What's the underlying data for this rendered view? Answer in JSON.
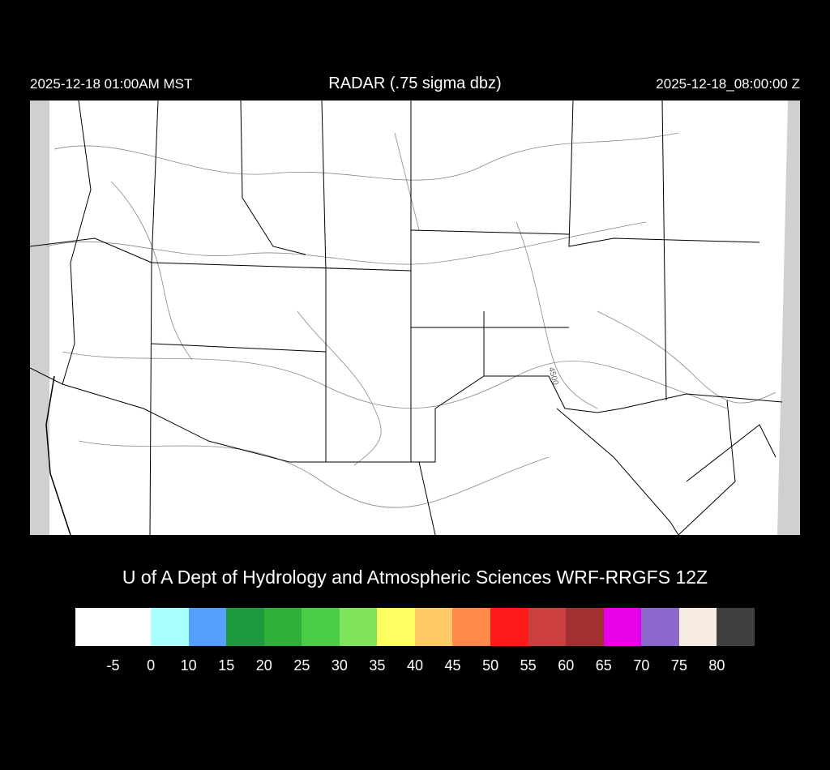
{
  "header": {
    "local_time": "2025-12-18 01:00AM MST",
    "title": "RADAR (.75 sigma dbz)",
    "valid_time": "2025-12-18_08:00:00 Z"
  },
  "map": {
    "contour_label": "4500",
    "background": "#ffffff",
    "border_color": "#000000",
    "contour_color": "#808080",
    "nodata_color": "#d0d0d0"
  },
  "credit": "U of A Dept of Hydrology and Atmospheric Sciences WRF-RRGFS 12Z",
  "colorbar": {
    "colors": [
      "#ffffff",
      "#aaffff",
      "#559fff",
      "#1f993f",
      "#2eb03a",
      "#4ccd47",
      "#80e35c",
      "#ffff61",
      "#ffca66",
      "#ff8a4c",
      "#ff1a1a",
      "#cc3f3f",
      "#a33030",
      "#e800e8",
      "#8a68cc",
      "#f7ece3",
      "#404040"
    ],
    "labels": [
      "-5",
      "0",
      "10",
      "15",
      "20",
      "25",
      "30",
      "35",
      "40",
      "45",
      "50",
      "55",
      "60",
      "65",
      "70",
      "75",
      "80"
    ]
  }
}
